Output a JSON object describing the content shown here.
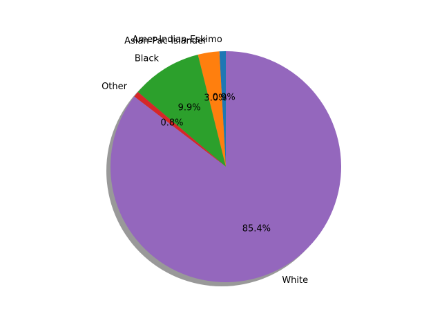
{
  "chart_data": {
    "type": "pie",
    "title": "",
    "start_angle_deg": 90,
    "direction": "counterclockwise",
    "shadow": true,
    "legend": "none",
    "slices": [
      {
        "label": "Amer-Indian-Eskimo",
        "value": 0.9,
        "pct_label": "0.9%",
        "color": "#1f77b4"
      },
      {
        "label": "Asian-Pac-Islander",
        "value": 3.0,
        "pct_label": "3.0%",
        "color": "#ff7f0e"
      },
      {
        "label": "Black",
        "value": 9.9,
        "pct_label": "9.9%",
        "color": "#2ca02c"
      },
      {
        "label": "Other",
        "value": 0.8,
        "pct_label": "0.8%",
        "color": "#d62728"
      },
      {
        "label": "White",
        "value": 85.4,
        "pct_label": "85.4%",
        "color": "#9467bd"
      }
    ]
  }
}
